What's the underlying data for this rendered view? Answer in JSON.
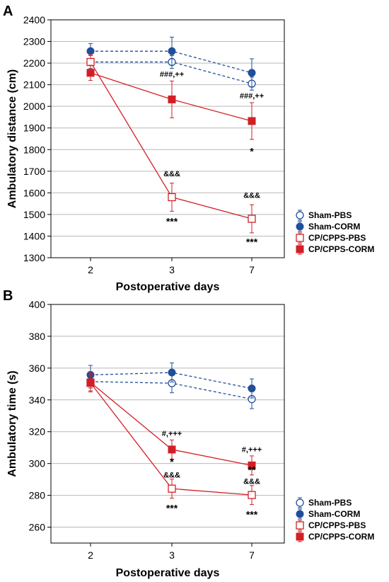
{
  "chart_data": [
    {
      "panel": "A",
      "type": "line",
      "xlabel": "Postoperative days",
      "ylabel": "Ambulatory distance (cm)",
      "categories": [
        "2",
        "3",
        "7"
      ],
      "ylim": [
        1300,
        2400
      ],
      "yticks": [
        "1300",
        "1400",
        "1500",
        "1600",
        "1700",
        "1800",
        "1900",
        "2000",
        "2100",
        "2200",
        "2300",
        "2400"
      ],
      "grid": true,
      "legend_position": "bottom-right outside",
      "series": [
        {
          "name": "Sham-PBS",
          "values": [
            2205,
            2205,
            2105
          ],
          "errors": [
            30,
            30,
            30
          ],
          "color": "#1f4e9c",
          "marker": "open-circle",
          "line": "dashed"
        },
        {
          "name": "Sham-CORM",
          "values": [
            2255,
            2255,
            2155
          ],
          "errors": [
            35,
            65,
            65
          ],
          "color": "#1f4e9c",
          "marker": "filled-circle",
          "line": "dashed"
        },
        {
          "name": "CP/CPPS-PBS",
          "values": [
            2205,
            1580,
            1480
          ],
          "errors": [
            35,
            65,
            65
          ],
          "color": "#d21f26",
          "marker": "open-square",
          "line": "solid"
        },
        {
          "name": "CP/CPPS-CORM",
          "values": [
            2155,
            2032,
            1932
          ],
          "errors": [
            35,
            85,
            85
          ],
          "color": "#d21f26",
          "marker": "filled-square",
          "line": "solid"
        }
      ],
      "annotations": [
        {
          "text": "###,++",
          "x": "3",
          "y": 2150
        },
        {
          "text": "###,++",
          "x": "7",
          "y": 2050
        },
        {
          "text": "*",
          "x": "7",
          "y": 1800
        },
        {
          "text": "&&&",
          "x": "3",
          "y": 1690
        },
        {
          "text": "***",
          "x": "3",
          "y": 1475
        },
        {
          "text": "&&&",
          "x": "7",
          "y": 1590
        },
        {
          "text": "***",
          "x": "7",
          "y": 1380
        }
      ]
    },
    {
      "panel": "B",
      "type": "line",
      "xlabel": "Postoperative days",
      "ylabel": "Ambulatory time (s)",
      "categories": [
        "2",
        "3",
        "7"
      ],
      "ylim": [
        250,
        400
      ],
      "yticks": [
        "260",
        "280",
        "300",
        "320",
        "340",
        "360",
        "380",
        "400"
      ],
      "grid": true,
      "legend_position": "bottom-right outside",
      "series": [
        {
          "name": "Sham-PBS",
          "values": [
            351.5,
            350.5,
            340.5
          ],
          "errors": [
            4,
            6,
            6
          ],
          "color": "#1f4e9c",
          "marker": "open-circle",
          "line": "dashed"
        },
        {
          "name": "Sham-CORM",
          "values": [
            355.7,
            357.2,
            347.2
          ],
          "errors": [
            6,
            6,
            6
          ],
          "color": "#1f4e9c",
          "marker": "filled-circle",
          "line": "dashed"
        },
        {
          "name": "CP/CPPS-PBS",
          "values": [
            350.7,
            284.2,
            280.2
          ],
          "errors": [
            5,
            6,
            6
          ],
          "color": "#d21f26",
          "marker": "open-square",
          "line": "solid"
        },
        {
          "name": "CP/CPPS-CORM",
          "values": [
            351.0,
            308.8,
            298.8
          ],
          "errors": [
            6,
            6,
            6
          ],
          "color": "#d21f26",
          "marker": "filled-square",
          "line": "solid"
        }
      ],
      "annotations": [
        {
          "text": "#,+++",
          "x": "3",
          "y": 319
        },
        {
          "text": "*",
          "x": "3",
          "y": 302
        },
        {
          "text": "#,+++",
          "x": "7",
          "y": 309
        },
        {
          "text": "**",
          "x": "7",
          "y": 297
        },
        {
          "text": "&&&",
          "x": "3",
          "y": 293
        },
        {
          "text": "***",
          "x": "3",
          "y": 273
        },
        {
          "text": "&&&",
          "x": "7",
          "y": 289
        },
        {
          "text": "***",
          "x": "7",
          "y": 269
        }
      ]
    }
  ],
  "panels": [
    {
      "label": "A"
    },
    {
      "label": "B"
    }
  ]
}
